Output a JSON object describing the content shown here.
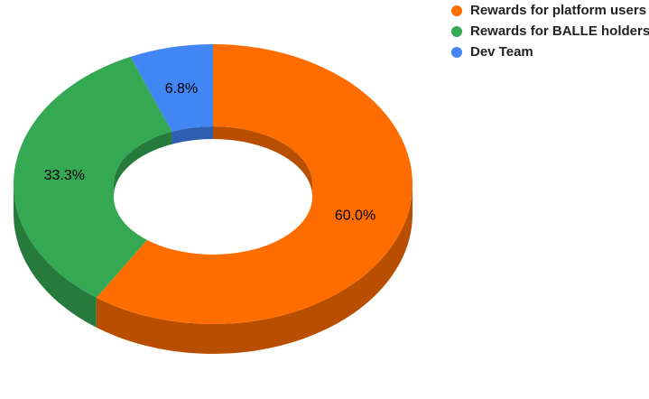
{
  "chart_data": {
    "type": "pie",
    "style": "3d-donut",
    "categories": [
      "Rewards for platform users",
      "Rewards for BALLE holders",
      "Dev Team"
    ],
    "values": [
      60.0,
      33.3,
      6.8
    ],
    "labels": [
      "60.0%",
      "33.3%",
      "6.8%"
    ],
    "colors": [
      "#ff6d01",
      "#34a853",
      "#4285f4"
    ],
    "side_colors": [
      "#b84e00",
      "#257a3c",
      "#2e5fb0"
    ],
    "legend_position": "top-right",
    "title": ""
  },
  "legend": {
    "items": [
      {
        "label": "Rewards for platform users",
        "color": "#ff6d01"
      },
      {
        "label": "Rewards for BALLE holders",
        "color": "#34a853"
      },
      {
        "label": "Dev Team",
        "color": "#4285f4"
      }
    ]
  }
}
